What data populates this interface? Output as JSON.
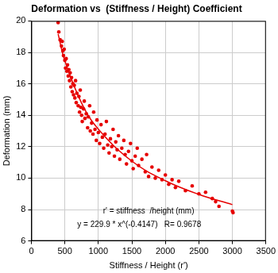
{
  "chart_data": {
    "type": "scatter",
    "title": "Deformation vs  (Stiffness / Height) Coefficient",
    "x_label": "Stiffness / Height (r')",
    "y_label": "Deformation (mm)",
    "annotations": [
      "r' = stiffness  /height (mm)",
      "y = 229.9 * x^(-0.4147)   R= 0.9678"
    ],
    "xlim": [
      0,
      3500
    ],
    "xticks": [
      0,
      500,
      1000,
      1500,
      2000,
      2500,
      3000,
      3500
    ],
    "ylim": [
      6,
      20
    ],
    "yticks": [
      6,
      8,
      10,
      12,
      14,
      16,
      18,
      20
    ],
    "grid": true,
    "series": [
      {
        "type": "scatter",
        "color": "#e60000",
        "marker": "circle",
        "x": [
          400,
          410,
          430,
          450,
          460,
          470,
          480,
          490,
          500,
          510,
          520,
          530,
          540,
          550,
          560,
          570,
          580,
          590,
          600,
          610,
          620,
          630,
          640,
          650,
          660,
          670,
          680,
          700,
          710,
          720,
          730,
          740,
          750,
          760,
          780,
          790,
          800,
          820,
          840,
          850,
          870,
          880,
          900,
          920,
          930,
          950,
          970,
          980,
          1000,
          1020,
          1040,
          1060,
          1080,
          1100,
          1120,
          1140,
          1160,
          1180,
          1200,
          1220,
          1240,
          1260,
          1280,
          1300,
          1320,
          1350,
          1380,
          1400,
          1420,
          1450,
          1480,
          1500,
          1520,
          1550,
          1580,
          1600,
          1650,
          1700,
          1720,
          1750,
          1800,
          1850,
          1900,
          1950,
          2000,
          2050,
          2100,
          2150,
          2200,
          2300,
          2400,
          2500,
          2600,
          2700,
          2750,
          2800,
          3000,
          3010
        ],
        "values": [
          19.9,
          19.3,
          18.8,
          18.4,
          18.7,
          18.1,
          17.8,
          18.2,
          17.5,
          17.0,
          17.6,
          16.8,
          17.2,
          16.5,
          16.9,
          16.2,
          16.7,
          15.8,
          16.4,
          15.5,
          16.0,
          15.3,
          15.9,
          15.1,
          16.2,
          14.8,
          15.4,
          14.6,
          15.2,
          14.2,
          15.6,
          14.5,
          14.0,
          13.6,
          14.4,
          14.9,
          13.8,
          14.1,
          13.2,
          13.9,
          14.6,
          13.0,
          13.5,
          12.8,
          14.2,
          13.1,
          12.4,
          13.7,
          12.9,
          12.2,
          13.4,
          12.6,
          11.9,
          12.8,
          13.6,
          12.1,
          11.6,
          12.5,
          12.0,
          13.1,
          11.4,
          12.3,
          11.8,
          12.7,
          11.2,
          11.9,
          12.4,
          11.5,
          10.9,
          11.7,
          12.2,
          11.1,
          10.6,
          11.4,
          11.9,
          10.8,
          11.2,
          10.4,
          11.5,
          10.1,
          10.7,
          10.0,
          10.5,
          9.9,
          10.2,
          9.6,
          9.9,
          9.4,
          9.8,
          9.2,
          9.5,
          9.0,
          9.1,
          8.7,
          8.5,
          8.2,
          7.9,
          7.8
        ]
      },
      {
        "type": "line",
        "color": "#e60000",
        "line_style": "solid",
        "x": [
          400,
          500,
          750,
          1000,
          1500,
          2000,
          2500,
          3000
        ],
        "values": [
          19.17,
          17.47,
          14.77,
          13.11,
          11.08,
          9.83,
          8.96,
          8.31
        ]
      }
    ]
  }
}
